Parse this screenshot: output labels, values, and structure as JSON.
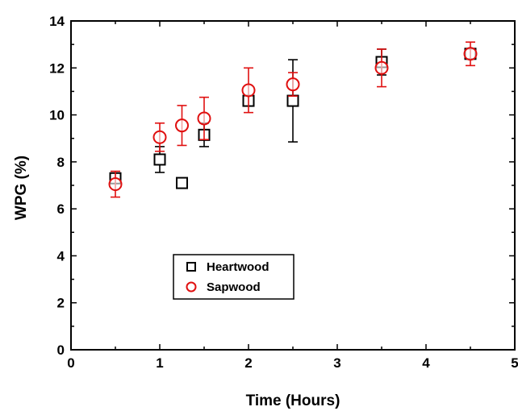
{
  "chart_data": {
    "type": "scatter",
    "title": "",
    "xlabel": "Time (Hours)",
    "ylabel": "WPG (%)",
    "xlim": [
      0,
      5
    ],
    "ylim": [
      0,
      14
    ],
    "x_ticks": [
      "0",
      "1",
      "2",
      "3",
      "4",
      "5"
    ],
    "y_ticks": [
      "0",
      "2",
      "4",
      "6",
      "8",
      "10",
      "12",
      "14"
    ],
    "grid": false,
    "legend_position": "lower-center",
    "series": [
      {
        "name": "Heartwood",
        "marker": "square",
        "color": "#000000",
        "points": [
          {
            "x": 0.5,
            "y": 7.3,
            "err": 0.2
          },
          {
            "x": 1.0,
            "y": 8.1,
            "err": 0.55
          },
          {
            "x": 1.25,
            "y": 7.1,
            "err": 0.2
          },
          {
            "x": 1.5,
            "y": 9.15,
            "err": 0.5
          },
          {
            "x": 2.0,
            "y": 10.6,
            "err": 0.2
          },
          {
            "x": 2.5,
            "y": 10.6,
            "err": 1.75
          },
          {
            "x": 3.5,
            "y": 12.25,
            "err": 0.55
          },
          {
            "x": 4.5,
            "y": 12.6,
            "err": 0.2
          }
        ]
      },
      {
        "name": "Sapwood",
        "marker": "circle",
        "color": "#e01010",
        "points": [
          {
            "x": 0.5,
            "y": 7.05,
            "err": 0.55
          },
          {
            "x": 1.0,
            "y": 9.05,
            "err": 0.6
          },
          {
            "x": 1.25,
            "y": 9.55,
            "err": 0.85
          },
          {
            "x": 1.5,
            "y": 9.85,
            "err": 0.9
          },
          {
            "x": 2.0,
            "y": 11.05,
            "err": 0.95
          },
          {
            "x": 2.5,
            "y": 11.3,
            "err": 0.5
          },
          {
            "x": 3.5,
            "y": 12.0,
            "err": 0.8
          },
          {
            "x": 4.5,
            "y": 12.6,
            "err": 0.5
          }
        ]
      }
    ]
  }
}
